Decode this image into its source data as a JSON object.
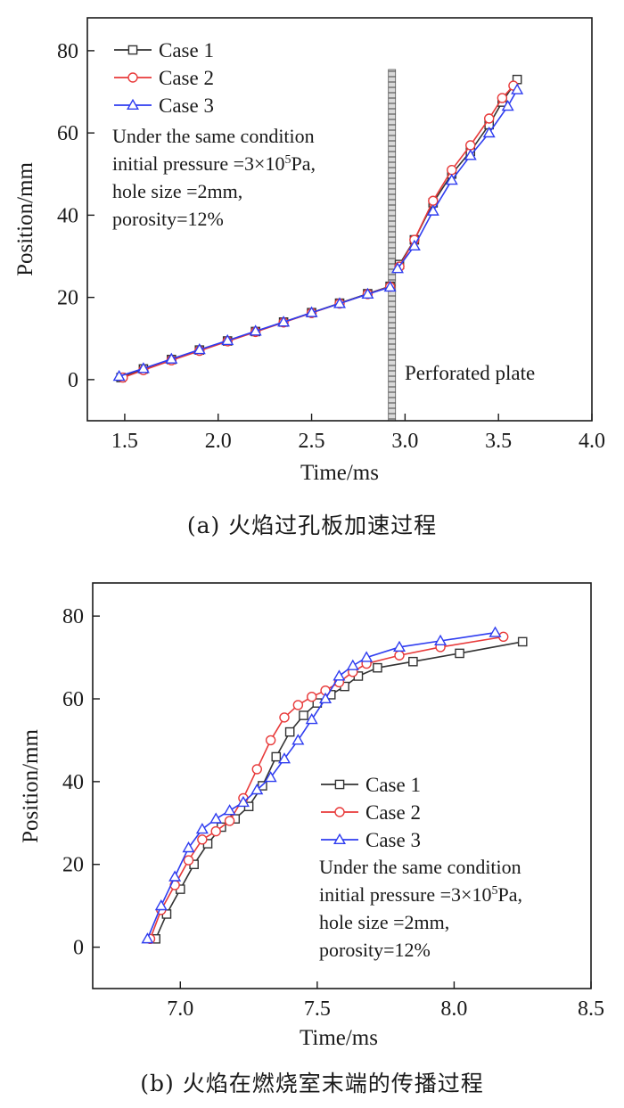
{
  "chart_data": [
    {
      "type": "line",
      "xlabel": "Time/ms",
      "ylabel": "Position/mm",
      "xlim": [
        1.3,
        4.0
      ],
      "ylim": [
        -10,
        88
      ],
      "xticks": [
        "1.5",
        "2.0",
        "2.5",
        "3.0",
        "3.5",
        "4.0"
      ],
      "yticks": [
        "0",
        "20",
        "40",
        "60",
        "80"
      ],
      "annotation_lines": [
        "Under the same condition",
        "initial pressure =3×10",
        "Pa,",
        "hole size =2mm,",
        "porosity=12%"
      ],
      "annotation_superscript": "5",
      "plate_label": "Perforated plate",
      "plate_x": 2.93,
      "legend": "top-left",
      "series": [
        {
          "name": "Case 1",
          "color": "#333333",
          "marker": "square",
          "x": [
            1.48,
            1.6,
            1.75,
            1.9,
            2.05,
            2.2,
            2.35,
            2.5,
            2.65,
            2.8,
            2.92,
            2.97,
            3.05,
            3.15,
            3.25,
            3.35,
            3.45,
            3.52,
            3.6
          ],
          "y": [
            0.5,
            2.6,
            4.9,
            7.2,
            9.4,
            11.7,
            14.0,
            16.3,
            18.6,
            20.9,
            22.7,
            28.0,
            34.0,
            43.0,
            50.0,
            55.5,
            62.0,
            67.5,
            73.0
          ]
        },
        {
          "name": "Case 2",
          "color": "#e83a3a",
          "marker": "circle",
          "x": [
            1.49,
            1.6,
            1.75,
            1.9,
            2.05,
            2.2,
            2.35,
            2.5,
            2.65,
            2.8,
            2.92,
            2.97,
            3.05,
            3.15,
            3.25,
            3.35,
            3.45,
            3.52,
            3.58
          ],
          "y": [
            0.5,
            2.3,
            4.7,
            7.0,
            9.3,
            11.6,
            13.9,
            16.2,
            18.5,
            20.8,
            22.6,
            27.5,
            34.0,
            43.5,
            51.0,
            57.0,
            63.5,
            68.5,
            71.5
          ]
        },
        {
          "name": "Case 3",
          "color": "#2e3cf0",
          "marker": "triangle",
          "x": [
            1.47,
            1.6,
            1.75,
            1.9,
            2.05,
            2.2,
            2.35,
            2.5,
            2.65,
            2.8,
            2.92,
            2.96,
            3.05,
            3.15,
            3.25,
            3.35,
            3.45,
            3.55,
            3.6
          ],
          "y": [
            0.8,
            2.7,
            5.0,
            7.3,
            9.5,
            11.8,
            14.0,
            16.3,
            18.5,
            20.8,
            22.5,
            27.0,
            32.5,
            41.0,
            48.5,
            54.5,
            60.0,
            66.5,
            70.5
          ]
        }
      ]
    },
    {
      "type": "line",
      "xlabel": "Time/ms",
      "ylabel": "Position/mm",
      "xlim": [
        6.68,
        8.5
      ],
      "ylim": [
        -10,
        88
      ],
      "xticks": [
        "7.0",
        "7.5",
        "8.0",
        "8.5"
      ],
      "yticks": [
        "0",
        "20",
        "40",
        "60",
        "80"
      ],
      "annotation_lines": [
        "Under the same condition",
        "initial pressure =3×10",
        "Pa,",
        "hole size =2mm,",
        "porosity=12%"
      ],
      "annotation_superscript": "5",
      "legend": "center-right",
      "series": [
        {
          "name": "Case 1",
          "color": "#333333",
          "marker": "square",
          "x": [
            6.91,
            6.95,
            7.0,
            7.05,
            7.1,
            7.15,
            7.2,
            7.25,
            7.3,
            7.35,
            7.4,
            7.45,
            7.5,
            7.55,
            7.6,
            7.65,
            7.72,
            7.85,
            8.02,
            8.25
          ],
          "y": [
            2.0,
            8.0,
            14.0,
            20.0,
            25.0,
            29.0,
            31.0,
            34.0,
            39.0,
            46.0,
            52.0,
            56.0,
            59.0,
            61.0,
            63.0,
            65.5,
            67.5,
            69.0,
            71.0,
            73.8
          ]
        },
        {
          "name": "Case 2",
          "color": "#e83a3a",
          "marker": "circle",
          "x": [
            6.89,
            6.93,
            6.98,
            7.03,
            7.08,
            7.13,
            7.18,
            7.23,
            7.28,
            7.33,
            7.38,
            7.43,
            7.48,
            7.53,
            7.58,
            7.63,
            7.68,
            7.8,
            7.95,
            8.18
          ],
          "y": [
            2.0,
            9.0,
            15.0,
            21.0,
            26.0,
            28.0,
            30.5,
            36.0,
            43.0,
            50.0,
            55.5,
            58.5,
            60.5,
            62.0,
            64.0,
            66.5,
            68.5,
            70.5,
            72.5,
            75.0
          ]
        },
        {
          "name": "Case 3",
          "color": "#2e3cf0",
          "marker": "triangle",
          "x": [
            6.88,
            6.93,
            6.98,
            7.03,
            7.08,
            7.13,
            7.18,
            7.23,
            7.28,
            7.33,
            7.38,
            7.43,
            7.48,
            7.53,
            7.58,
            7.63,
            7.68,
            7.8,
            7.95,
            8.15
          ],
          "y": [
            2.0,
            10.0,
            17.0,
            24.0,
            28.5,
            31.0,
            33.0,
            35.0,
            38.0,
            41.0,
            45.5,
            50.0,
            55.0,
            60.0,
            65.5,
            68.0,
            70.0,
            72.5,
            74.0,
            76.0
          ]
        }
      ]
    }
  ],
  "captions": [
    "(a) 火焰过孔板加速过程",
    "(b) 火焰在燃烧室末端的传播过程"
  ]
}
